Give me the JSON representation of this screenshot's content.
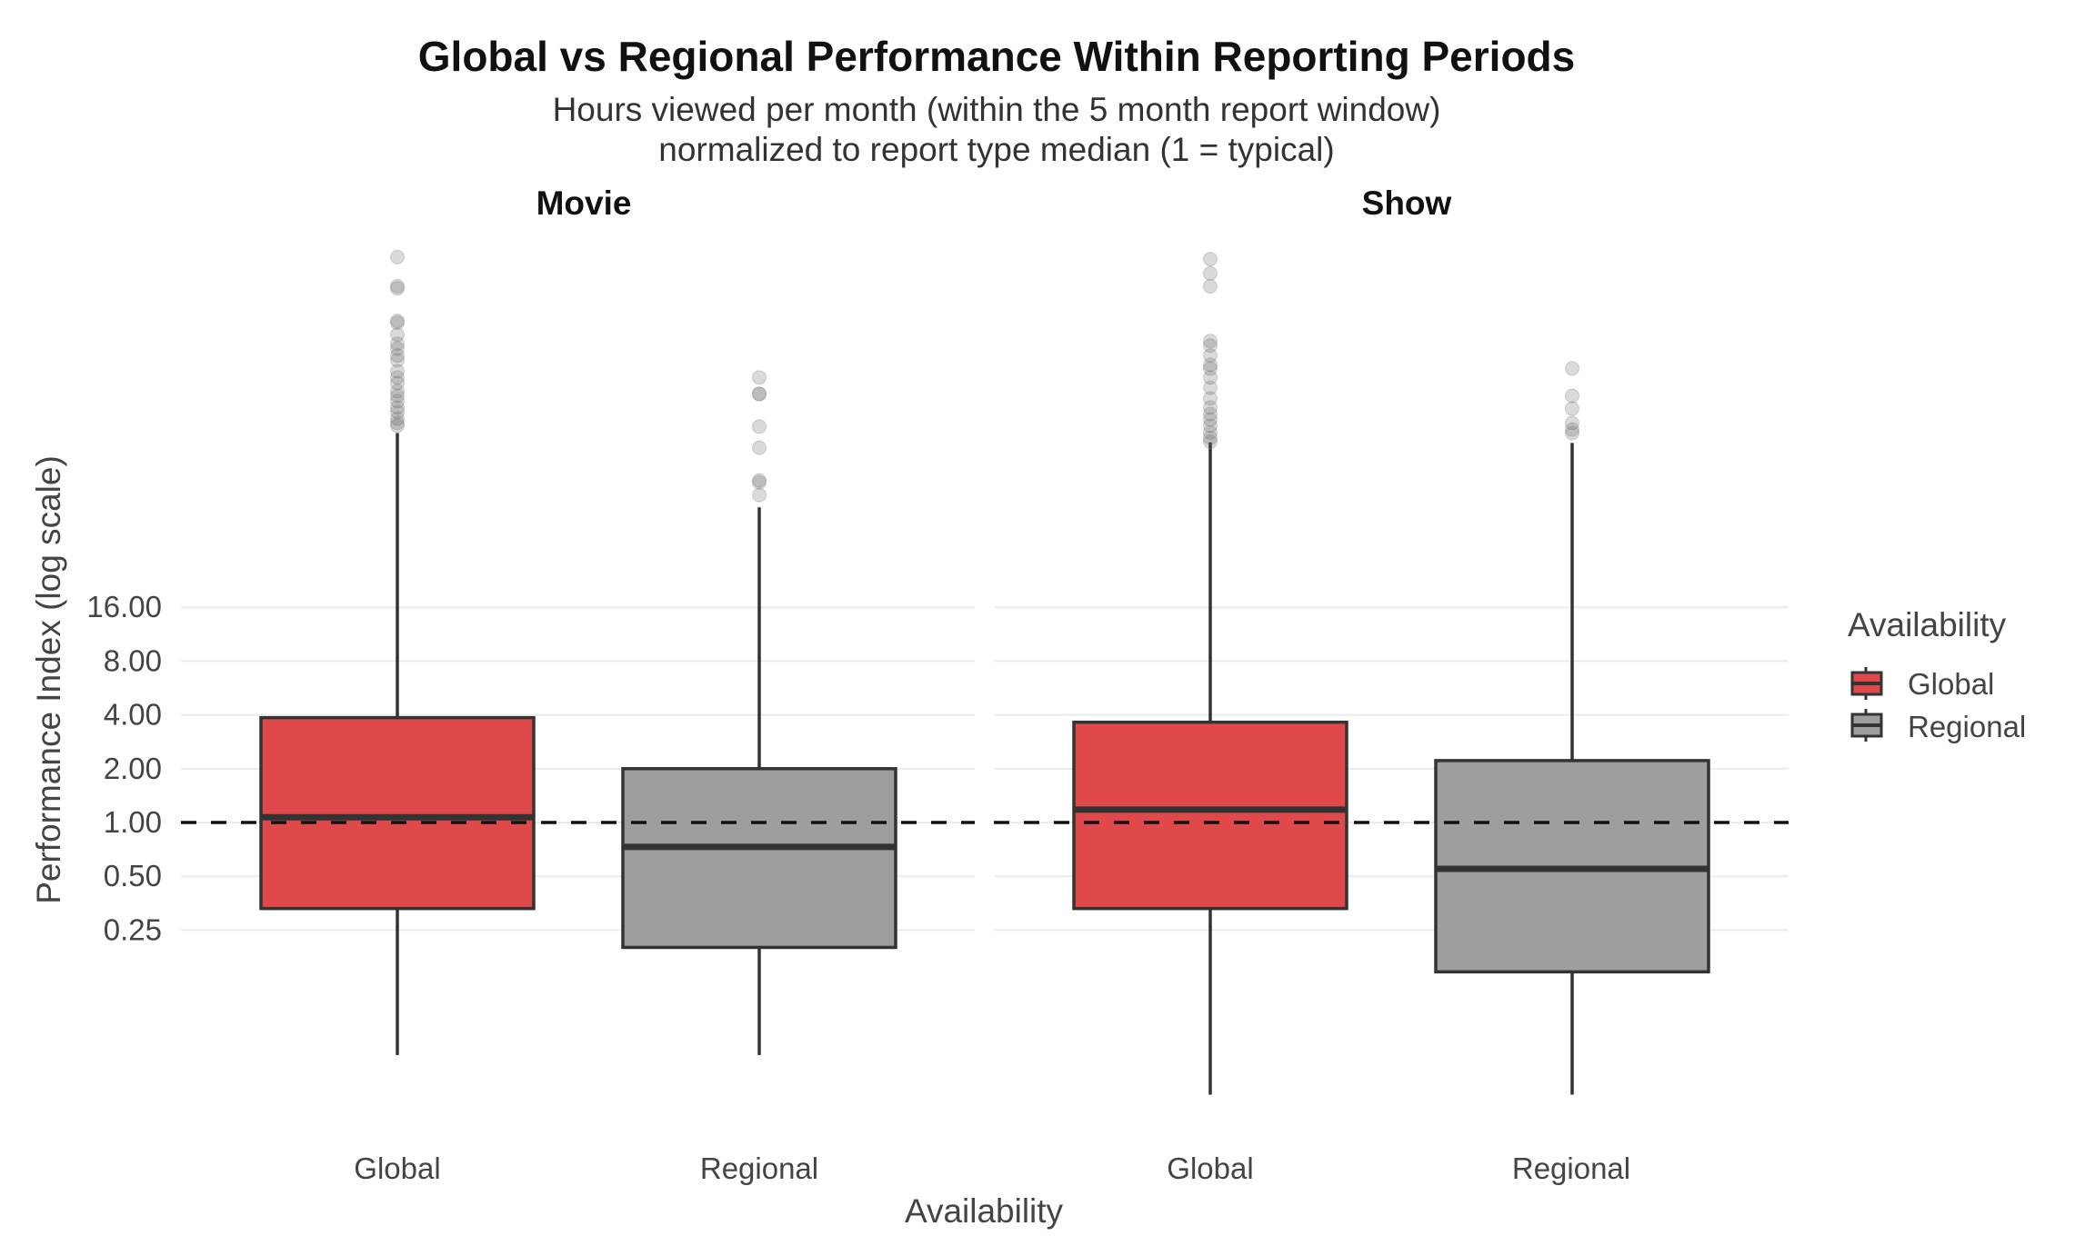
{
  "chart_data": {
    "type": "boxplot",
    "title": "Global vs Regional Performance Within Reporting Periods",
    "subtitle": [
      "Hours viewed per month (within the 5 month report window)",
      "normalized to report type median (1 = typical)"
    ],
    "xlabel": "Availability",
    "ylabel": "Performance Index (log scale)",
    "y_scale": "log2",
    "y_ticks": [
      0.25,
      0.5,
      1,
      2,
      4,
      8,
      16
    ],
    "y_tick_labels": [
      "0.25",
      "0.50",
      "1.00",
      "2.00",
      "4.00",
      "8.00",
      "16.00"
    ],
    "reference_line": {
      "y": 1,
      "style": "dashed",
      "color": "#111111"
    },
    "categories": [
      "Global",
      "Regional"
    ],
    "legend": {
      "title": "Availability",
      "position": "right",
      "entries": [
        "Global",
        "Regional"
      ]
    },
    "colors": {
      "Global": "#e0494b",
      "Regional": "#9e9e9e",
      "outline": "#333333",
      "grid": "#ebebeb",
      "outlier": "#555555"
    },
    "panels": [
      {
        "label": "Movie",
        "boxes": [
          {
            "category": "Global",
            "whisker_low": 0.05,
            "q1": 0.33,
            "median": 1.07,
            "q3": 3.86,
            "whisker_high": 151,
            "outliers": [
              1457,
              1000,
              975,
              640,
              625,
              536,
              477,
              449,
              410,
              386,
              335,
              309,
              288,
              259,
              244,
              228,
              210,
              198,
              182,
              172,
              166
            ]
          },
          {
            "category": "Regional",
            "whisker_low": 0.05,
            "q1": 0.2,
            "median": 0.73,
            "q3": 2.0,
            "whisker_high": 58,
            "outliers": [
              309,
              250,
              250,
              164,
              125,
              82,
              80,
              68
            ]
          }
        ]
      },
      {
        "label": "Show",
        "boxes": [
          {
            "category": "Global",
            "whisker_low": 0.03,
            "q1": 0.33,
            "median": 1.18,
            "q3": 3.64,
            "whisker_high": 134,
            "outliers": [
              1420,
              1180,
              1000,
              494,
              466,
              410,
              364,
              347,
              309,
              271,
              236,
              210,
              193,
              180,
              166,
              152,
              142,
              135
            ]
          },
          {
            "category": "Regional",
            "whisker_low": 0.03,
            "q1": 0.146,
            "median": 0.55,
            "q3": 2.22,
            "whisker_high": 133,
            "outliers": [
              347,
              244,
              207,
              172,
              158,
              151
            ]
          }
        ]
      }
    ]
  }
}
